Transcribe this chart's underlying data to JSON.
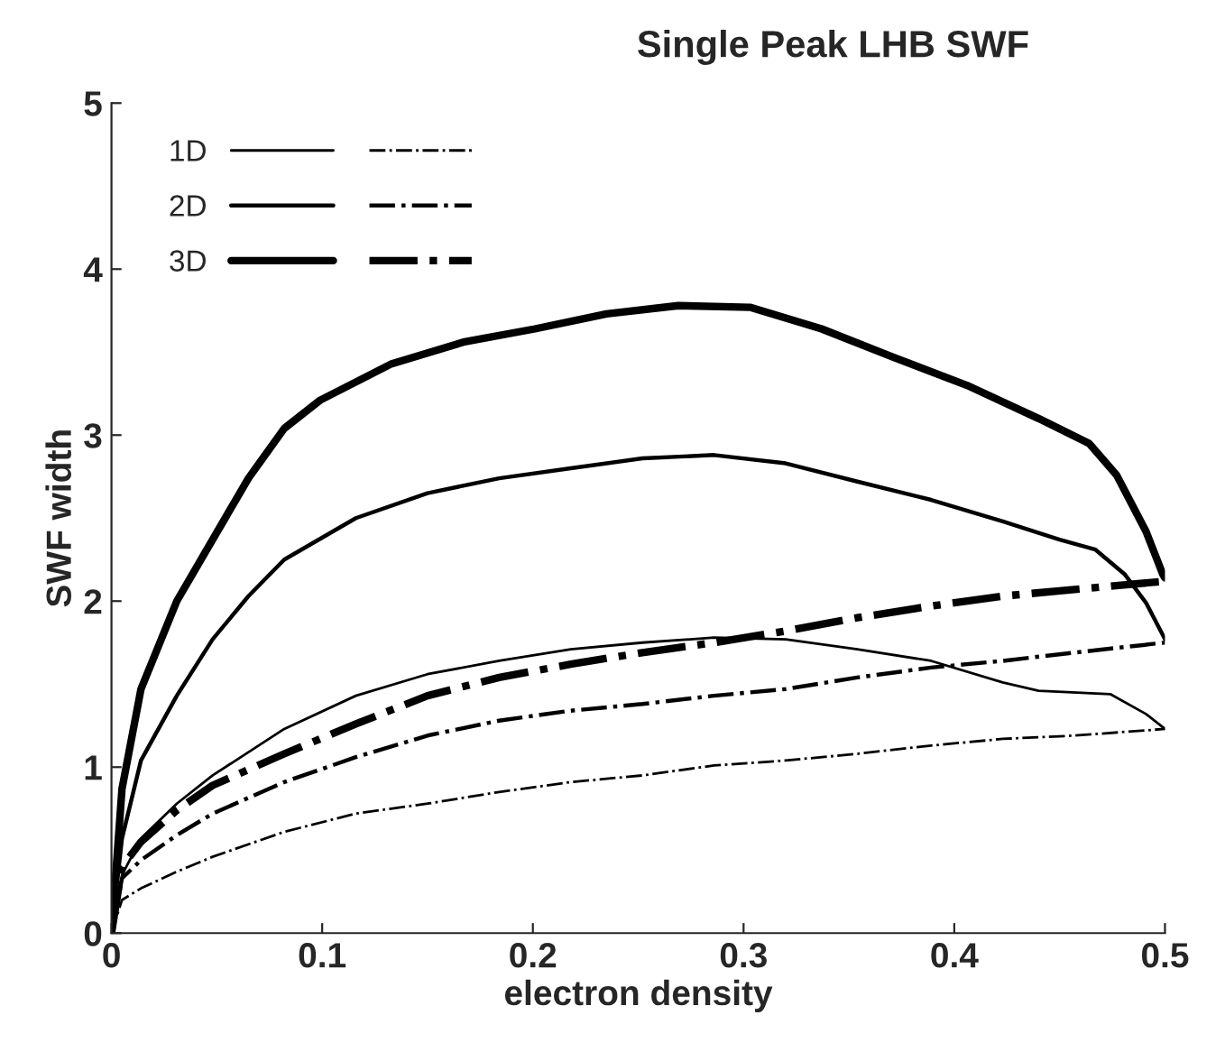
{
  "chart_data": {
    "type": "line",
    "title": "Single Peak LHB SWF",
    "xlabel": "electron density",
    "ylabel": "SWF width",
    "xlim": [
      0,
      0.5
    ],
    "ylim": [
      0,
      5
    ],
    "xticks": [
      0,
      0.1,
      0.2,
      0.3,
      0.4,
      0.5
    ],
    "yticks": [
      0,
      1,
      2,
      3,
      4,
      5
    ],
    "grid": false,
    "legend": "top left",
    "series": [
      {
        "name": "1D",
        "color": "#000000",
        "line_style": "solid",
        "x": [
          0,
          0.005,
          0.014,
          0.031,
          0.048,
          0.082,
          0.116,
          0.15,
          0.184,
          0.218,
          0.252,
          0.286,
          0.32,
          0.354,
          0.389,
          0.423,
          0.44,
          0.474,
          0.491,
          0.5
        ],
        "values": [
          0,
          0.35,
          0.57,
          0.78,
          0.95,
          1.23,
          1.43,
          1.56,
          1.64,
          1.71,
          1.75,
          1.78,
          1.77,
          1.71,
          1.64,
          1.51,
          1.46,
          1.44,
          1.32,
          1.23
        ]
      },
      {
        "color": "#000000",
        "line_style": "dashdot",
        "x": [
          0,
          0.005,
          0.014,
          0.031,
          0.048,
          0.082,
          0.116,
          0.15,
          0.184,
          0.218,
          0.252,
          0.286,
          0.32,
          0.354,
          0.389,
          0.423,
          0.457,
          0.5
        ],
        "values": [
          0,
          0.2,
          0.27,
          0.37,
          0.46,
          0.61,
          0.72,
          0.78,
          0.85,
          0.91,
          0.95,
          1.01,
          1.04,
          1.08,
          1.13,
          1.17,
          1.19,
          1.23
        ]
      },
      {
        "name": "2D",
        "color": "#000000",
        "line_style": "solid",
        "x": [
          0,
          0.005,
          0.014,
          0.031,
          0.048,
          0.065,
          0.082,
          0.116,
          0.15,
          0.184,
          0.218,
          0.252,
          0.286,
          0.32,
          0.354,
          0.389,
          0.423,
          0.45,
          0.467,
          0.481,
          0.491,
          0.5
        ],
        "values": [
          0,
          0.57,
          1.04,
          1.43,
          1.77,
          2.03,
          2.25,
          2.5,
          2.65,
          2.74,
          2.8,
          2.86,
          2.88,
          2.83,
          2.72,
          2.61,
          2.48,
          2.37,
          2.31,
          2.16,
          1.99,
          1.77
        ]
      },
      {
        "color": "#000000",
        "line_style": "dashdot",
        "x": [
          0,
          0.005,
          0.014,
          0.031,
          0.048,
          0.082,
          0.116,
          0.15,
          0.184,
          0.218,
          0.252,
          0.286,
          0.32,
          0.354,
          0.389,
          0.423,
          0.457,
          0.5
        ],
        "values": [
          0,
          0.33,
          0.44,
          0.59,
          0.72,
          0.91,
          1.06,
          1.19,
          1.28,
          1.34,
          1.38,
          1.43,
          1.47,
          1.54,
          1.6,
          1.64,
          1.69,
          1.75
        ]
      },
      {
        "name": "3D",
        "color": "#000000",
        "line_style": "solid",
        "x": [
          0,
          0.005,
          0.014,
          0.031,
          0.048,
          0.065,
          0.082,
          0.099,
          0.133,
          0.167,
          0.201,
          0.235,
          0.269,
          0.303,
          0.337,
          0.371,
          0.406,
          0.44,
          0.464,
          0.477,
          0.491,
          0.499,
          0.5
        ],
        "values": [
          0,
          0.87,
          1.47,
          2.0,
          2.37,
          2.74,
          3.04,
          3.21,
          3.43,
          3.56,
          3.64,
          3.73,
          3.78,
          3.77,
          3.64,
          3.47,
          3.3,
          3.1,
          2.95,
          2.76,
          2.42,
          2.16,
          2.14
        ]
      },
      {
        "color": "#000000",
        "line_style": "dashdot",
        "x": [
          0,
          0.005,
          0.014,
          0.031,
          0.048,
          0.082,
          0.116,
          0.15,
          0.184,
          0.218,
          0.252,
          0.286,
          0.32,
          0.354,
          0.389,
          0.423,
          0.457,
          0.5
        ],
        "values": [
          0,
          0.4,
          0.55,
          0.74,
          0.89,
          1.08,
          1.26,
          1.43,
          1.54,
          1.62,
          1.69,
          1.75,
          1.82,
          1.9,
          1.97,
          2.03,
          2.07,
          2.12
        ]
      }
    ]
  }
}
